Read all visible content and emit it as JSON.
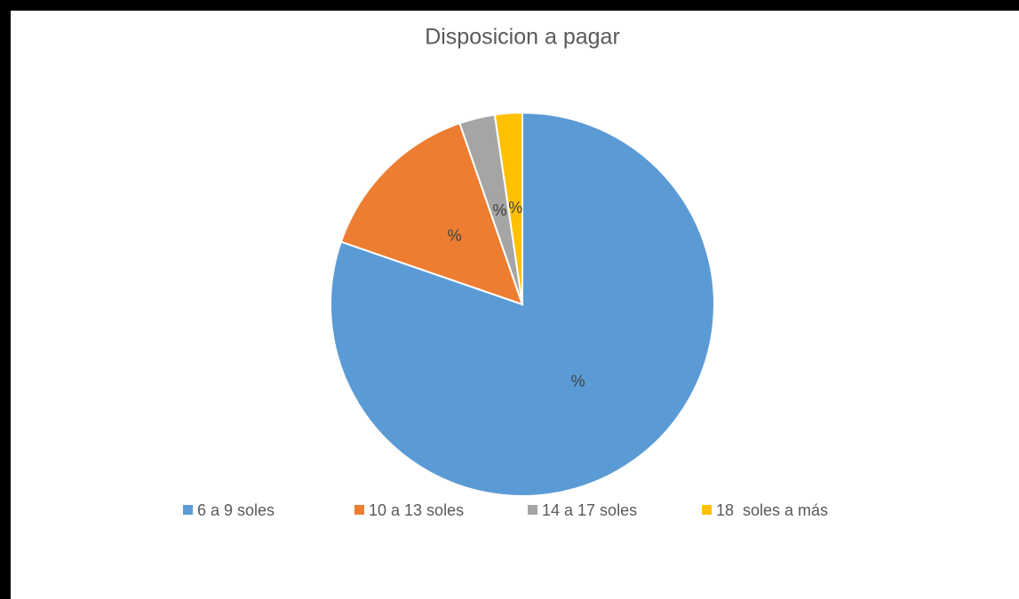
{
  "chart_data": {
    "type": "pie",
    "title": "Disposicion a pagar",
    "categories": [
      "6 a 9 soles",
      "10 a 13 soles",
      "14 a 17 soles",
      "18  soles a más"
    ],
    "values": [
      80.3,
      14.4,
      3.0,
      2.3
    ],
    "value_labels": [
      "%",
      "%",
      "%",
      "%"
    ],
    "colors": [
      "#5b9bd5",
      "#ed7d31",
      "#a5a5a5",
      "#ffc000"
    ],
    "legend": "bottom"
  }
}
